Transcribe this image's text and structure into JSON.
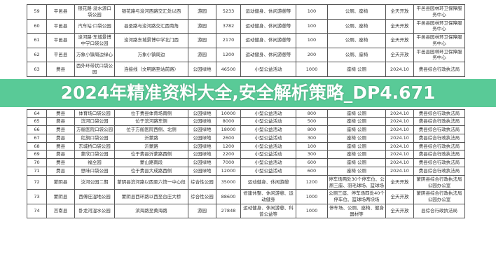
{
  "banner": {
    "title": "2024年精准资料大全,安全解析策略_DP4.671"
  },
  "table": {
    "rows": [
      [
        "59",
        "平邑县",
        "银花路·浚水源口袋公园",
        "银花路与浚河西路交汇处以西",
        "游园",
        "5233",
        "运动健身、休闲游憩等",
        "100",
        "公厕、座椅",
        "全天开放",
        "平邑县园林环卫保障服务中心"
      ],
      [
        "60",
        "平邑县",
        "汽车站·口袋公园",
        "县圣路与浚河路交汇西南角",
        "游园",
        "3782",
        "运动健身、休闲游憩等",
        "100",
        "公厕、座椅",
        "全天开放",
        "平邑县园林环卫保障服务中心"
      ],
      [
        "61",
        "平邑县",
        "浚河路·东城景博中学口袋公园",
        "浚河路东城景博中学北门西",
        "游园",
        "2170",
        "运动健身、休闲游憩等",
        "100",
        "公厕、座椅",
        "全天开放",
        "平邑县园林环卫保障服务中心"
      ],
      [
        "62",
        "平邑县",
        "万象小镇周边绿心",
        "万象小镇周边",
        "游园",
        "1200",
        "运动健身、休闲游憩等",
        "200",
        "公厕、座椅",
        "全天开放",
        "平邑县园林环卫保障服务中心"
      ],
      [
        "63",
        "费县",
        "西外环带状口袋公园",
        "连接线（文明路至站前路）",
        "公园绿地",
        "46500",
        "小型公益活动",
        "1000",
        "座椅 公厕",
        "2024.10",
        "费县综合行政执法局"
      ],
      [
        "64",
        "费县",
        "体育场口袋公园",
        "位于费县体育场南侧",
        "公园绿地",
        "10000",
        "小型公益活动",
        "800",
        "座椅 公厕",
        "2024.10",
        "费县综合行政执法局"
      ],
      [
        "65",
        "费县",
        "滨河口袋公园",
        "位于滨河路东侧",
        "公园绿地",
        "8000",
        "小型公益活动",
        "500",
        "座椅 公厕",
        "2024.10",
        "费县综合行政执法局"
      ],
      [
        "66",
        "费县",
        "方舱医院口袋公园",
        "位于方舱医院西侧、北侧",
        "公园绿地",
        "18000",
        "小型公益活动",
        "800",
        "座椅 公厕",
        "2024.10",
        "费县综合行政执法局"
      ],
      [
        "67",
        "费县",
        "红旗口袋公园",
        "沂蒙路",
        "公园绿地",
        "2600",
        "小型公益活动",
        "300",
        "座椅 公厕",
        "2024.10",
        "费县综合行政执法局"
      ],
      [
        "68",
        "费县",
        "东城桥口袋公园",
        "沂蒙路",
        "公园绿地",
        "1200",
        "小型公益活动",
        "100",
        "座椅 公厕",
        "2024.10",
        "费县综合行政执法局"
      ],
      [
        "69",
        "费县",
        "蒙欣口袋公园",
        "位于费县沂蒙路西侧",
        "公园绿地",
        "2200",
        "小型公益活动",
        "300",
        "座椅 公厕",
        "2024.10",
        "费县综合行政执法局"
      ],
      [
        "70",
        "费县",
        "福全园",
        "蒙山路南段",
        "公园绿地",
        "7000",
        "小型公益活动",
        "600",
        "座椅 公厕",
        "2024.10",
        "费县综合行政执法局"
      ],
      [
        "71",
        "费县",
        "思味口袋公园",
        "位于费县大成路西侧",
        "公园绿地",
        "12000",
        "小型公益活动",
        "600",
        "座椅 公厕",
        "2024.10",
        "费县综合行政执法局"
      ],
      [
        "72",
        "蒙阴县",
        "汶河公园二期",
        "蒙阴县滨河路以西至六馆一中心段",
        "综合性公园",
        "35000",
        "运动健身、休闲游憩",
        "1200",
        "停车场两处30个停车位、公厕三座、羽毛球场、篮球场",
        "全天开放",
        "蒙阴县综合行政执法局公园办公室"
      ],
      [
        "73",
        "蒙阴县",
        "西傅庄湿地公园",
        "蒙阴县西环路以西至台庄大桥",
        "综合性公园",
        "88600",
        "修建休整、休闲游憩、运动健身",
        "1000",
        "公厕三座、停车场四处40个停车位、篮球场两块场",
        "全天开放",
        "蒙阴县综合行政执法局公园办公室"
      ],
      [
        "74",
        "莒南县",
        "卧龙河湿水公园",
        "滨海路至黄海路",
        "游园",
        "27848",
        "运动健身、休闲游憩、科普公益等",
        "1000",
        "停车场、公厕、座椅、健身器材等",
        "全天开放",
        "县综合行政执法局"
      ]
    ]
  },
  "colors": {
    "banner": "#34be80",
    "banner_text": "#ffffff"
  }
}
